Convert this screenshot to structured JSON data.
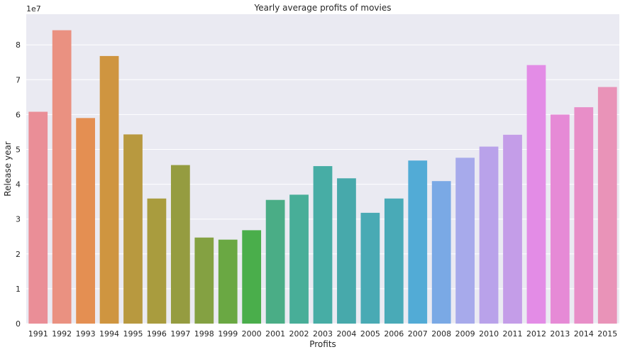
{
  "chart_data": {
    "type": "bar",
    "title": "Yearly average profits of movies",
    "xlabel": "Profits",
    "ylabel": "Release year",
    "offset_label": "1e7",
    "categories": [
      "1991",
      "1992",
      "1993",
      "1994",
      "1995",
      "1996",
      "1997",
      "1998",
      "1999",
      "2000",
      "2001",
      "2002",
      "2003",
      "2004",
      "2005",
      "2006",
      "2007",
      "2008",
      "2009",
      "2010",
      "2011",
      "2012",
      "2013",
      "2014",
      "2015"
    ],
    "values": [
      6.08,
      8.42,
      5.9,
      7.68,
      5.43,
      3.59,
      4.55,
      2.47,
      2.41,
      2.68,
      3.55,
      3.7,
      4.52,
      4.17,
      3.18,
      3.59,
      4.68,
      4.09,
      4.76,
      5.08,
      5.42,
      7.42,
      6.0,
      6.21,
      6.79
    ],
    "colors": [
      "#ea8e97",
      "#ea9181",
      "#e48f52",
      "#cf9540",
      "#b8993f",
      "#a99c3e",
      "#959c40",
      "#84a142",
      "#6aa843",
      "#4aae4b",
      "#4aad86",
      "#48ae98",
      "#47ada5",
      "#47a9ab",
      "#49aab4",
      "#49aab7",
      "#52abd6",
      "#7aa9e5",
      "#a7aaeb",
      "#b9a2ea",
      "#c49de8",
      "#e38ce6",
      "#e68ad6",
      "#e88ec8",
      "#e993b8"
    ],
    "y_ticks": [
      "0",
      "1",
      "2",
      "3",
      "4",
      "5",
      "6",
      "7",
      "8"
    ],
    "ylim": [
      0,
      8.88
    ],
    "grid": true,
    "background": "#eaeaf2",
    "grid_color": "#ffffff"
  }
}
